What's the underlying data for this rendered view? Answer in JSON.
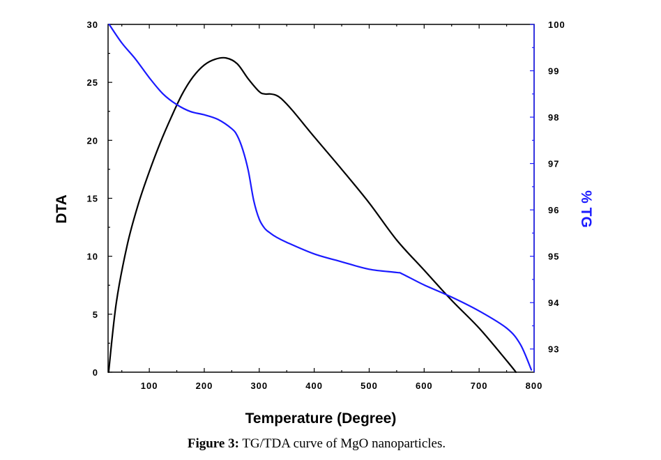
{
  "caption": {
    "label": "Figure 3:",
    "text": " TG/TDA curve of MgO nanoparticles."
  },
  "chart_data": {
    "type": "line",
    "title": "",
    "xlabel": "Temperature (Degree)",
    "ylabel_left": "DTA",
    "ylabel_right": "% TG",
    "xlim": [
      25,
      800
    ],
    "ylim_left": [
      0,
      30
    ],
    "ylim_right": [
      92.5,
      100
    ],
    "x_ticks": [
      100,
      200,
      300,
      400,
      500,
      600,
      700,
      800
    ],
    "y_left_ticks": [
      0,
      5,
      10,
      15,
      20,
      25,
      30
    ],
    "y_right_ticks": [
      93,
      94,
      95,
      96,
      97,
      98,
      99,
      100
    ],
    "grid": false,
    "colors": {
      "dta": "#000000",
      "tg": "#1a1aff",
      "axis_right": "#1a1aff",
      "frame": "#000000"
    },
    "series": [
      {
        "name": "DTA",
        "axis": "left",
        "x": [
          26,
          40,
          60,
          80,
          100,
          120,
          140,
          160,
          180,
          200,
          220,
          240,
          260,
          280,
          300,
          310,
          320,
          330,
          340,
          360,
          400,
          450,
          500,
          550,
          600,
          650,
          700,
          750,
          767
        ],
        "y": [
          0,
          6,
          11,
          14.5,
          17.3,
          19.8,
          22,
          24,
          25.5,
          26.5,
          27,
          27.1,
          26.6,
          25.3,
          24.2,
          24.0,
          24.0,
          23.9,
          23.6,
          22.6,
          20.3,
          17.5,
          14.6,
          11.4,
          8.8,
          6.2,
          3.8,
          1.0,
          0
        ]
      },
      {
        "name": "TG",
        "axis": "right",
        "x": [
          27,
          50,
          75,
          100,
          125,
          150,
          175,
          200,
          225,
          250,
          260,
          270,
          280,
          290,
          300,
          310,
          320,
          330,
          350,
          400,
          450,
          500,
          550,
          560,
          600,
          650,
          700,
          750,
          775,
          795
        ],
        "y": [
          100,
          99.6,
          99.25,
          98.85,
          98.5,
          98.27,
          98.12,
          98.05,
          97.95,
          97.75,
          97.6,
          97.3,
          96.85,
          96.2,
          95.8,
          95.6,
          95.5,
          95.42,
          95.3,
          95.05,
          94.88,
          94.72,
          94.65,
          94.62,
          94.38,
          94.12,
          93.82,
          93.45,
          93.1,
          92.55
        ]
      }
    ]
  }
}
